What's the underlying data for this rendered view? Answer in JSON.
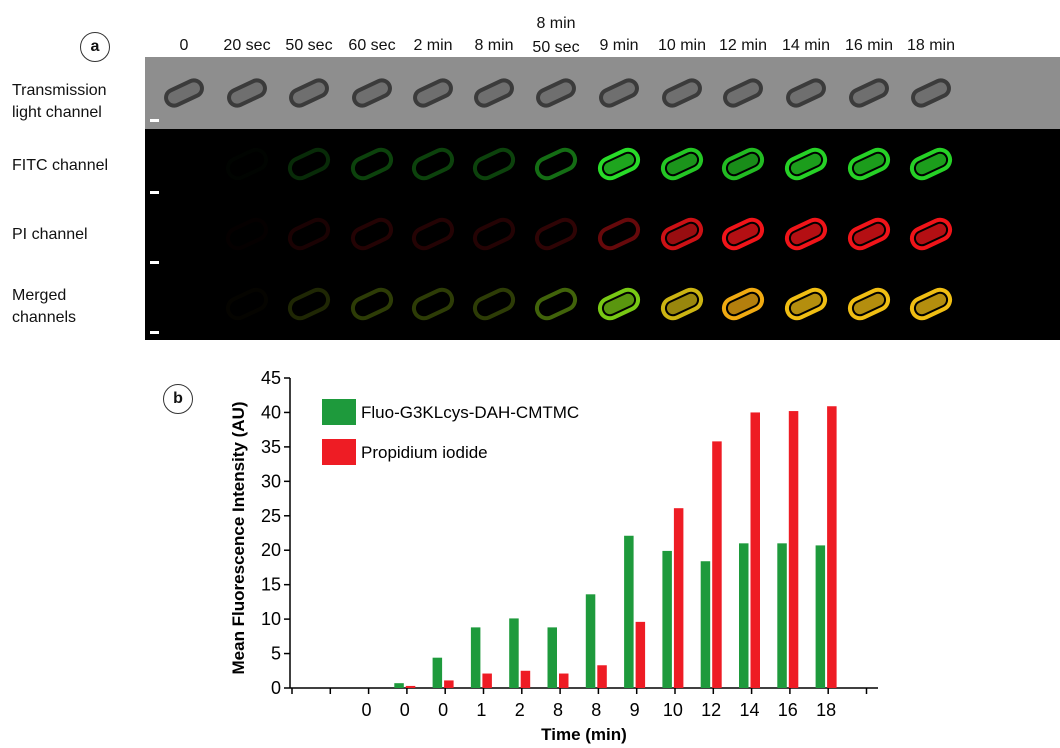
{
  "panel_a": {
    "badge": "a",
    "timepoints": [
      "0",
      "20 sec",
      "50 sec",
      "60 sec",
      "2 min",
      "8 min",
      "8 min 50 sec",
      "9 min",
      "10 min",
      "12 min",
      "14 min",
      "16 min",
      "18 min"
    ],
    "rows": [
      {
        "label": "Transmission light channel",
        "channel": "transmission",
        "background": "#8e8e8e"
      },
      {
        "label": "FITC channel",
        "channel": "fitc",
        "background": "#000000"
      },
      {
        "label": "PI channel",
        "channel": "pi",
        "background": "#000000"
      },
      {
        "label": "Merged channels",
        "channel": "merged",
        "background": "#000000"
      }
    ],
    "fitc_level": [
      0,
      0.05,
      0.3,
      0.4,
      0.4,
      0.4,
      0.55,
      1,
      0.9,
      0.85,
      0.95,
      0.95,
      0.95
    ],
    "pi_level": [
      0,
      0.05,
      0.2,
      0.25,
      0.25,
      0.25,
      0.3,
      0.5,
      0.85,
      1,
      1,
      1,
      1
    ]
  },
  "panel_b": {
    "badge": "b"
  },
  "chart_data": {
    "type": "bar",
    "categories": [
      "0",
      "0",
      "0",
      "1",
      "2",
      "8",
      "8",
      "9",
      "10",
      "12",
      "14",
      "16",
      "18"
    ],
    "xlabel": "Time (min)",
    "ylabel": "Mean Fluorescence Intensity (AU)",
    "ylim": [
      0,
      45
    ],
    "yticks": [
      0,
      5,
      10,
      15,
      20,
      25,
      30,
      35,
      40,
      45
    ],
    "legend_position": "top-left",
    "grid": false,
    "series": [
      {
        "name": "Fluo-G3KLcys-DAH-CMTMC",
        "color": "#1e9a3c",
        "values": [
          0,
          0.7,
          4.4,
          8.8,
          10.1,
          8.8,
          13.6,
          22.1,
          19.9,
          18.4,
          21.0,
          21.0,
          20.7
        ]
      },
      {
        "name": "Propidium iodide",
        "color": "#ee1c24",
        "values": [
          0,
          0.3,
          1.1,
          2.1,
          2.5,
          2.1,
          3.3,
          9.6,
          26.1,
          35.8,
          40.0,
          40.2,
          40.9
        ]
      }
    ]
  }
}
